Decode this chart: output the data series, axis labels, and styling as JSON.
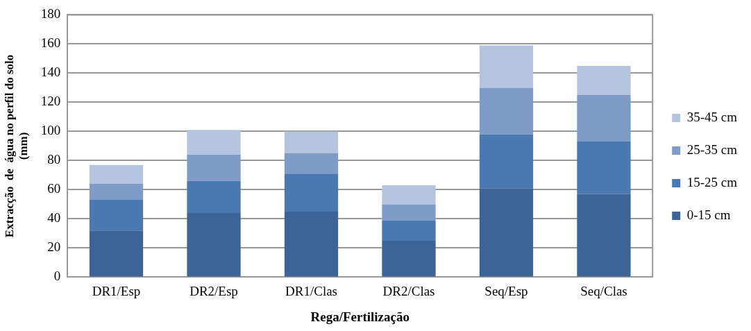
{
  "chart_data": {
    "type": "bar",
    "stacked": true,
    "xlabel": "Rega/Fertilização",
    "ylabel": "Extracção  de  água no perfil do solo (mm)",
    "categories": [
      "DR1/Esp",
      "DR2/Esp",
      "DR1/Clas",
      "DR2/Clas",
      "Seq/Esp",
      "Seq/Clas"
    ],
    "series": [
      {
        "name": "0-15 cm",
        "color": "#3d6496",
        "values": [
          32,
          44,
          45,
          25,
          61,
          57
        ]
      },
      {
        "name": "15-25 cm",
        "color": "#4a78b0",
        "values": [
          21,
          22,
          26,
          14,
          37,
          36
        ]
      },
      {
        "name": "25-35 cm",
        "color": "#7f9cc8",
        "values": [
          11,
          18,
          14,
          11,
          32,
          32
        ]
      },
      {
        "name": "35-45 cm",
        "color": "#b5c4de",
        "values": [
          13,
          17,
          15,
          13,
          29,
          20
        ]
      }
    ],
    "ylim": [
      0,
      180
    ],
    "yticks": [
      0,
      20,
      40,
      60,
      80,
      100,
      120,
      140,
      160,
      180
    ],
    "grid": "y",
    "legend": "right"
  }
}
